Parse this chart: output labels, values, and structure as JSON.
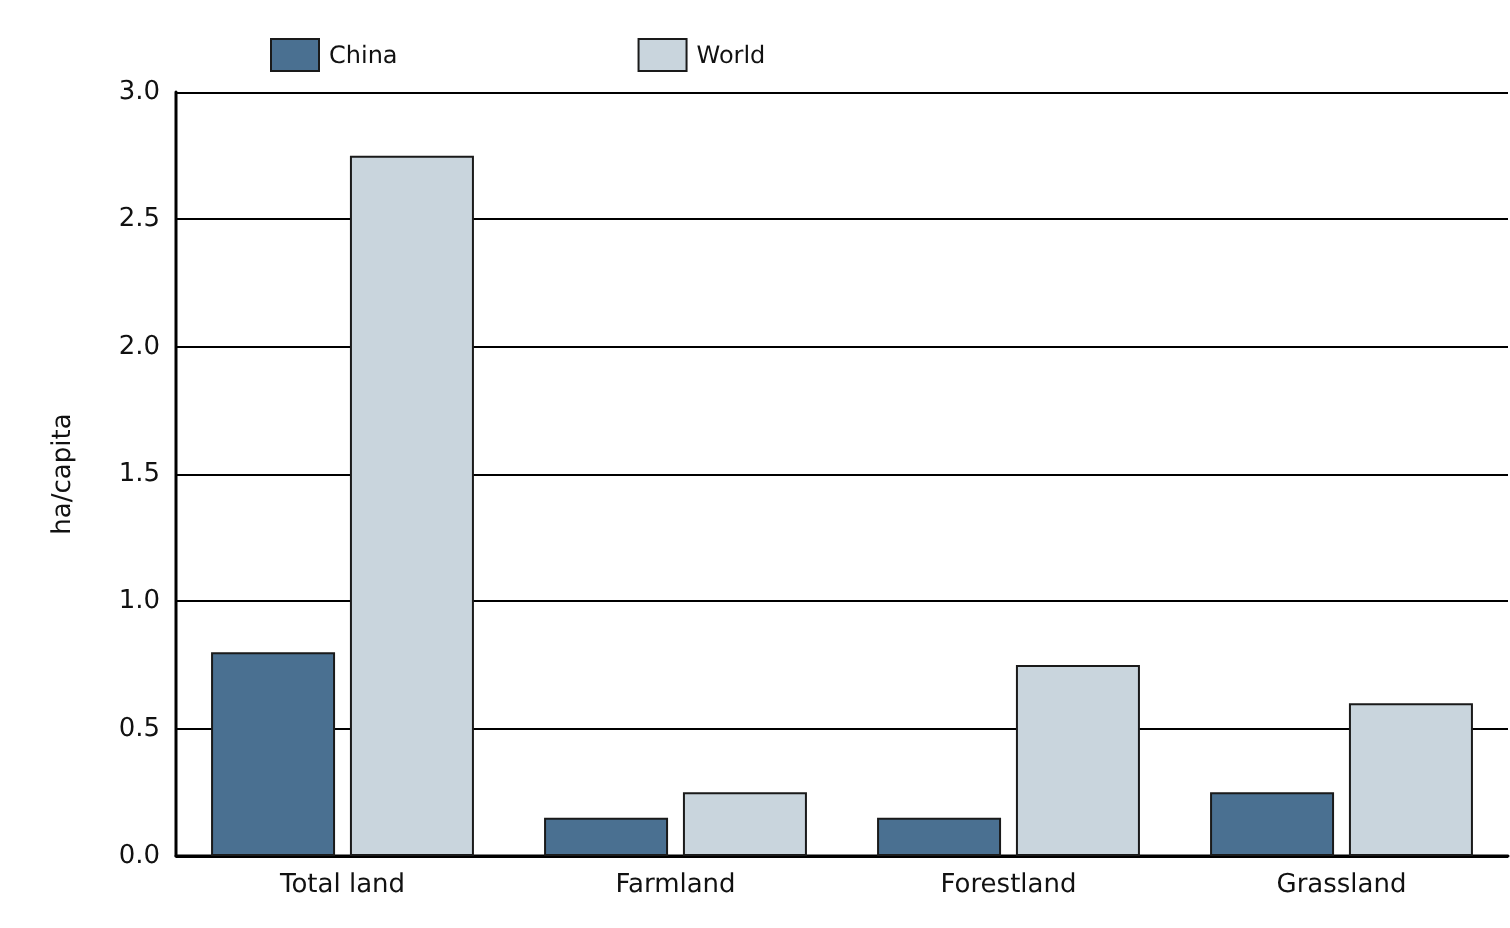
{
  "chart_data": {
    "type": "bar",
    "ylabel": "ha/capita",
    "categories": [
      "Total land",
      "Farmland",
      "Forestland",
      "Grassland"
    ],
    "series": [
      {
        "name": "China",
        "color": "#4a7091",
        "values": [
          0.8,
          0.15,
          0.15,
          0.25
        ]
      },
      {
        "name": "World",
        "color": "#c9d5dd",
        "values": [
          2.75,
          0.25,
          0.75,
          0.6
        ]
      }
    ],
    "ylim": [
      0,
      3
    ],
    "yticks": [
      {
        "value": 0,
        "label": "0.0"
      },
      0.5,
      {
        "value": 1,
        "label": "1.0"
      },
      1.5,
      {
        "value": 2,
        "label": "2.0"
      },
      2.5,
      {
        "value": 3,
        "label": "3.0"
      }
    ],
    "grid": "y",
    "legend": "top left"
  }
}
